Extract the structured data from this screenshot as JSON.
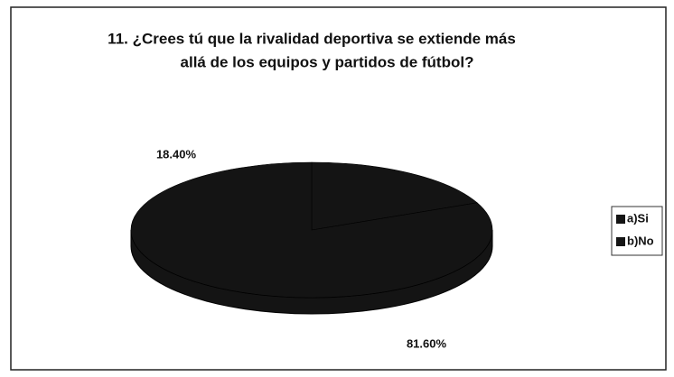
{
  "chart_data": {
    "type": "pie",
    "title": [
      "11. ¿Crees tú que la rivalidad deportiva se extiende más",
      "allá de los equipos y partidos de fútbol?"
    ],
    "categories": [
      "a)Si",
      "b)No"
    ],
    "values": [
      18.4,
      81.6
    ],
    "value_labels": [
      "18.40%",
      "81.60%"
    ],
    "colors": [
      "#141414",
      "#141414"
    ],
    "legend": "right"
  }
}
